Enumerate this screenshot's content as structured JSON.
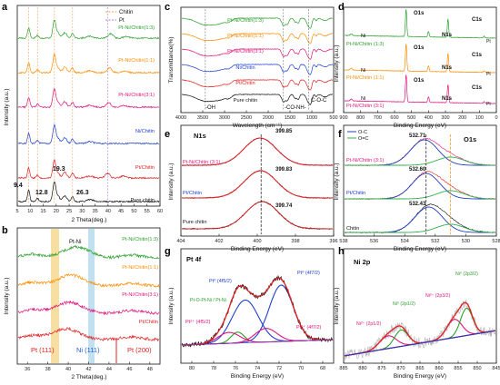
{
  "figure": {
    "panels": {
      "a": {
        "letter": "a",
        "xlabel": "2 Theta(deg.)",
        "ylabel": "Intensity (a.u.)",
        "xticks": [
          "5",
          "10",
          "15",
          "20",
          "25",
          "30",
          "35",
          "40",
          "45",
          "50",
          "55",
          "60"
        ],
        "legend": [
          {
            "label": "Chitin",
            "color": "#f0a060"
          },
          {
            "label": "Pt",
            "color": "#b07ad8"
          }
        ],
        "peak_labels": [
          "9.4",
          "12.8",
          "19.3",
          "26.3"
        ]
      },
      "b": {
        "letter": "b",
        "xlabel": "2 Theta(deg.)",
        "ylabel": "Intensity (a.u.)",
        "xticks": [
          "36",
          "38",
          "40",
          "42",
          "44",
          "46",
          "48"
        ],
        "annotations": {
          "ptni": "Pt-Ni",
          "pt111": "Pt (111)",
          "ni111": "Ni (111)",
          "pt200": "Pt (200)"
        }
      },
      "c": {
        "letter": "c",
        "xlabel": "Wavelength (cm⁻¹)",
        "ylabel": "Transmittance(%)",
        "xticks": [
          "4000",
          "3500",
          "3000",
          "2500",
          "2000",
          "1500",
          "1000",
          "500"
        ],
        "bands": [
          "-OH",
          "-CO-NH-",
          "C-O-C"
        ]
      },
      "d": {
        "letter": "d",
        "xlabel": "Binding Energy (eV)",
        "ylabel": "Intensity (a.u.)",
        "xticks": [
          "900",
          "800",
          "700",
          "600",
          "500",
          "400",
          "300",
          "200",
          "100",
          "0"
        ],
        "peak_labels": {
          "o1s": "O1s",
          "n1s": "N1s",
          "c1s": "C1s",
          "ni": "Ni",
          "pt": "Pt"
        }
      },
      "e": {
        "letter": "e",
        "title": "N1s",
        "xlabel": "Binding Energy (eV)",
        "ylabel": "Intensity (a.u.)",
        "xticks": [
          "404",
          "402",
          "400",
          "398",
          "396"
        ],
        "peak_values": [
          "399.85",
          "399.83",
          "399.74"
        ]
      },
      "f": {
        "letter": "f",
        "title": "O1s",
        "xlabel": "Binding Energy (eV)",
        "ylabel": "Intensity (a.u.)",
        "xticks": [
          "538",
          "536",
          "534",
          "532",
          "530",
          "528"
        ],
        "legend": [
          {
            "label": "O-C",
            "color": "#1f3fbf"
          },
          {
            "label": "O=C",
            "color": "#2cb24a"
          }
        ],
        "peak_values": [
          "532.71",
          "532.60",
          "532.43"
        ]
      },
      "g": {
        "letter": "g",
        "title": "Pt 4f",
        "xlabel": "Binding Energy (eV)",
        "ylabel": "Intensity (a.u.)",
        "xticks": [
          "80",
          "78",
          "76",
          "74",
          "72",
          "70",
          "68"
        ],
        "peaks": [
          "Pt⁰ (4f5/2)",
          "Pt⁰ (4f7/2)",
          "Pt-O-Pt-Ni / Pt-Ni",
          "Pt²⁺ (4f5/2)",
          "Pt²⁺ (4f7/2)"
        ]
      },
      "h": {
        "letter": "h",
        "title": "Ni 2p",
        "xlabel": "Binding Energy (eV)",
        "ylabel": "Intensity (a.u.)",
        "xticks": [
          "885",
          "880",
          "875",
          "870",
          "865",
          "860",
          "855",
          "850",
          "845"
        ],
        "peaks": [
          "Ni²⁺ (2p1/2)",
          "Ni⁰ (2p1/2)",
          "Ni²⁺ (2p3/2)",
          "Ni⁰ (2p3/2)"
        ]
      }
    },
    "samples": {
      "s13": "Pt-Ni/Chitin(1:3)",
      "s11": "Pt-Ni/Chitin(1:1)",
      "s31": "Pt-Ni/Chitin(3:1)",
      "ni": "Ni/Chitin",
      "pt": "Pt/Chitin",
      "chitin": "Pure chitin",
      "d13": "Pt-Ni/Chitin (1:3)",
      "d11": "Pt-Ni/Chitin (1:1)",
      "d31": "Pt-Ni/Chitin (3:1)",
      "chitin_short": "Chitin"
    },
    "colors": {
      "s13": "#2ca02c",
      "s11": "#ff8c00",
      "s31": "#e0147a",
      "ni": "#1f3fd0",
      "pt": "#e02020",
      "chitin": "#111111"
    }
  },
  "chart_data": [
    {
      "panel": "a",
      "type": "line",
      "xlabel": "2 Theta(deg.)",
      "ylabel": "Intensity (a.u.)",
      "xlim": [
        5,
        60
      ],
      "reference_lines": {
        "Chitin": [
          9.4,
          12.8,
          19.3,
          26.3
        ],
        "Pt": [
          39.8
        ]
      },
      "series": [
        {
          "name": "Pure chitin",
          "peaks_2theta": [
            9.4,
            12.8,
            19.3,
            26.3
          ]
        },
        {
          "name": "Pt/Chitin",
          "peaks_2theta": [
            9.4,
            19.3,
            26.3,
            39.8
          ]
        },
        {
          "name": "Ni/Chitin",
          "peaks_2theta": [
            9.4,
            19.3,
            26.3
          ]
        },
        {
          "name": "Pt-Ni/Chitin(3:1)",
          "peaks_2theta": [
            9.4,
            19.3,
            26.3,
            40.2
          ]
        },
        {
          "name": "Pt-Ni/Chitin(1:1)",
          "peaks_2theta": [
            9.4,
            19.3,
            26.3,
            40.5
          ]
        },
        {
          "name": "Pt-Ni/Chitin(1:3)",
          "peaks_2theta": [
            9.4,
            19.3,
            26.3,
            41.0
          ]
        }
      ]
    },
    {
      "panel": "b",
      "type": "line",
      "xlim": [
        35,
        49
      ],
      "reference_positions": {
        "Pt (111)": 39.8,
        "Ni (111)": 44.5,
        "Pt (200)": 46.2
      },
      "series": [
        "Pt-Ni/Chitin(1:3)",
        "Pt-Ni/Chitin(1:1)",
        "Pt-Ni/Chitin(3:1)",
        "Pt/Chitin"
      ]
    },
    {
      "panel": "c",
      "type": "line",
      "xlim": [
        4000,
        500
      ],
      "band_positions_cm": {
        "-OH": 3440,
        "-CO-NH-": 1650,
        "C-O-C": 1070
      },
      "series": [
        "Pt-Ni/Chitin(1:3)",
        "Pt-Ni/Chitin(1:1)",
        "Pt-Ni/Chitin(3:1)",
        "Ni/Chitin",
        "Pt/Chitin",
        "Pure chitin"
      ]
    },
    {
      "panel": "d",
      "type": "line",
      "xlim": [
        900,
        0
      ],
      "peak_positions_eV": {
        "O1s": 532,
        "N1s": 400,
        "C1s": 285,
        "Ni": 855,
        "Pt": 72
      },
      "series": [
        "Pt-Ni/Chitin (1:3)",
        "Pt-Ni/Chitin (1:1)",
        "Pt-Ni/Chitin (3:1)"
      ]
    },
    {
      "panel": "e",
      "type": "line",
      "xlim": [
        404,
        396
      ],
      "series": [
        {
          "name": "Pt-Ni/Chitin (3:1)",
          "peak_eV": 399.85
        },
        {
          "name": "Pt/Chitin",
          "peak_eV": 399.83
        },
        {
          "name": "Pure chitin",
          "peak_eV": 399.74
        }
      ]
    },
    {
      "panel": "f",
      "type": "line",
      "xlim": [
        538,
        528
      ],
      "series": [
        {
          "name": "Pt-Ni/Chitin (3:1)",
          "peak_eV": 532.71
        },
        {
          "name": "Pt/Chitin",
          "peak_eV": 532.6
        },
        {
          "name": "Chitin",
          "peak_eV": 532.43
        }
      ],
      "components": {
        "O-C": 532.6,
        "O=C": 530.8
      }
    },
    {
      "panel": "g",
      "type": "line",
      "xlim": [
        81,
        67
      ],
      "components_eV": {
        "Pt⁰ (4f5/2)": 75.1,
        "Pt⁰ (4f7/2)": 71.8,
        "Pt²⁺ (4f5/2)": 76.6,
        "Pt²⁺ (4f7/2)": 73.2,
        "Pt-O-Pt-Ni / Pt-Ni": 75.8
      }
    },
    {
      "panel": "h",
      "type": "line",
      "xlim": [
        885,
        845
      ],
      "components_eV": {
        "Ni²⁺ (2p1/2)": 873.4,
        "Ni⁰ (2p1/2)": 869.9,
        "Ni²⁺ (2p3/2)": 856.0,
        "Ni⁰ (2p3/2)": 852.8
      }
    }
  ]
}
